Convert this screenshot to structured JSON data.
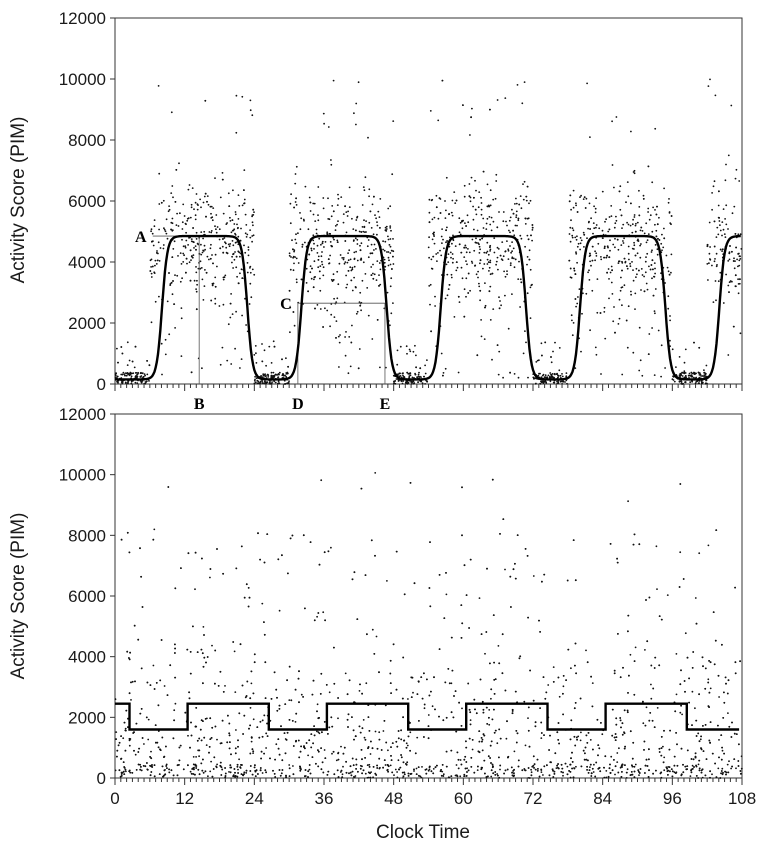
{
  "chart_data": [
    {
      "type": "scatter",
      "panel": "top",
      "xlabel": "",
      "ylabel": "Activity Score (PIM)",
      "xlim": [
        0,
        108
      ],
      "ylim": [
        0,
        12000
      ],
      "yticks": [
        0,
        2000,
        4000,
        6000,
        8000,
        10000,
        12000
      ],
      "fit_curve": {
        "shape": "smoothed square wave",
        "period_hours": 24,
        "min": 150,
        "max": 4850,
        "mid_level": 2650,
        "rise_start_hours": [
          6.5,
          30.5,
          54.5,
          78.5,
          102.5
        ],
        "fall_end_hours": [
          24,
          48,
          72,
          96
        ]
      },
      "scatter_note": "dense raw activity points, high (2000-8500) during active phase, near 0 during rest",
      "annotations": [
        {
          "label": "A",
          "x": 6.5,
          "y": 4850
        },
        {
          "label": "B",
          "x": 14.5,
          "y": 0
        },
        {
          "label": "C",
          "x": 31.5,
          "y": 2650
        },
        {
          "label": "D",
          "x": 31.5,
          "y": 0
        },
        {
          "label": "E",
          "x": 46.5,
          "y": 0
        }
      ]
    },
    {
      "type": "scatter",
      "panel": "bottom",
      "xlabel": "Clock Time",
      "ylabel": "Activity Score (PIM)",
      "xlim": [
        0,
        108
      ],
      "ylim": [
        0,
        12000
      ],
      "xticks": [
        0,
        12,
        24,
        36,
        48,
        60,
        72,
        84,
        96,
        108
      ],
      "yticks": [
        0,
        2000,
        4000,
        6000,
        8000,
        10000,
        12000
      ],
      "fit_curve": {
        "shape": "square wave",
        "high": 2450,
        "low": 1600,
        "segments": [
          {
            "x0": 0,
            "x1": 2.5,
            "y": 2450
          },
          {
            "x0": 2.5,
            "x1": 12.5,
            "y": 1600
          },
          {
            "x0": 12.5,
            "x1": 26.5,
            "y": 2450
          },
          {
            "x0": 26.5,
            "x1": 36.5,
            "y": 1600
          },
          {
            "x0": 36.5,
            "x1": 50.5,
            "y": 2450
          },
          {
            "x0": 50.5,
            "x1": 60.5,
            "y": 1600
          },
          {
            "x0": 60.5,
            "x1": 74.5,
            "y": 2450
          },
          {
            "x0": 74.5,
            "x1": 84.5,
            "y": 1600
          },
          {
            "x0": 84.5,
            "x1": 98.5,
            "y": 2450
          },
          {
            "x0": 98.5,
            "x1": 107.5,
            "y": 1600
          }
        ]
      },
      "scatter_note": "dispersed raw activity points, 0-8500, no clear rest phase"
    }
  ]
}
